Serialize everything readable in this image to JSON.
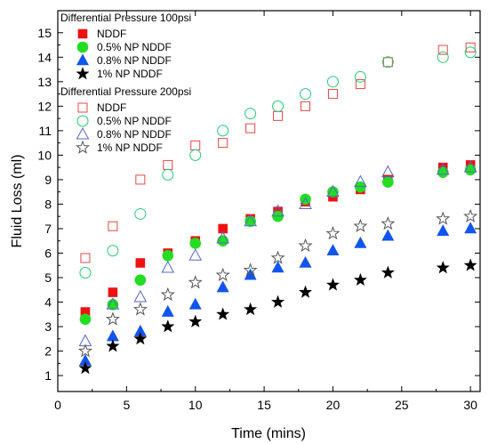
{
  "chart_data": {
    "type": "scatter",
    "xlabel": "Time (mins)",
    "ylabel": "Fluid Loss (ml)",
    "xlim": [
      0,
      30.7
    ],
    "ylim": [
      0.35,
      15.9
    ],
    "xticks": [
      "0",
      "5",
      "10",
      "15",
      "20",
      "25",
      "30"
    ],
    "yticks": [
      "1",
      "2",
      "3",
      "4",
      "5",
      "6",
      "7",
      "8",
      "9",
      "10",
      "11",
      "12",
      "13",
      "14",
      "15"
    ],
    "grid": false,
    "legend_placement": "top-left",
    "legend_groups": [
      {
        "title": "Differential Pressure 100psi",
        "entries": [
          "NDDF",
          "0.5% NP NDDF",
          "0.8% NP NDDF",
          "1% NP NDDF"
        ]
      },
      {
        "title": "Differential Pressure 200psi",
        "entries": [
          "NDDF",
          "0.5% NP NDDF",
          "0.8% NP NDDF",
          "1% NP NDDF"
        ]
      }
    ],
    "series": [
      {
        "name": "NDDF",
        "group": "Differential Pressure 100psi",
        "marker": "square",
        "filled": true,
        "color": "#ee1111",
        "x": [
          2,
          4,
          6,
          8,
          10,
          12,
          14,
          16,
          18,
          20,
          22,
          24,
          28,
          30
        ],
        "y": [
          3.6,
          4.4,
          5.6,
          6.0,
          6.5,
          7.0,
          7.4,
          7.7,
          8.1,
          8.3,
          8.6,
          9.0,
          9.5,
          9.6
        ]
      },
      {
        "name": "0.5% NP NDDF",
        "group": "Differential Pressure 100psi",
        "marker": "circle",
        "filled": true,
        "color": "#22dd22",
        "x": [
          2,
          4,
          6,
          8,
          10,
          12,
          14,
          16,
          18,
          20,
          22,
          24,
          28,
          30
        ],
        "y": [
          3.3,
          3.9,
          4.9,
          5.9,
          6.4,
          6.5,
          7.3,
          7.5,
          8.2,
          8.5,
          8.7,
          8.9,
          9.3,
          9.4
        ]
      },
      {
        "name": "0.8% NP NDDF",
        "group": "Differential Pressure 100psi",
        "marker": "triangle",
        "filled": true,
        "color": "#1155ee",
        "x": [
          2,
          4,
          6,
          8,
          10,
          12,
          14,
          16,
          18,
          20,
          22,
          24,
          28,
          30
        ],
        "y": [
          1.6,
          2.6,
          2.8,
          3.6,
          3.9,
          4.6,
          5.1,
          5.4,
          5.6,
          6.1,
          6.4,
          6.7,
          6.9,
          7.0
        ]
      },
      {
        "name": "1% NP NDDF",
        "group": "Differential Pressure 100psi",
        "marker": "star",
        "filled": true,
        "color": "#000000",
        "x": [
          2,
          4,
          6,
          8,
          10,
          12,
          14,
          16,
          18,
          20,
          22,
          24,
          28,
          30
        ],
        "y": [
          1.3,
          2.2,
          2.5,
          3.0,
          3.2,
          3.5,
          3.7,
          4.0,
          4.4,
          4.7,
          4.9,
          5.2,
          5.4,
          5.5
        ]
      },
      {
        "name": "NDDF",
        "group": "Differential Pressure 200psi",
        "marker": "square",
        "filled": false,
        "color": "#ee4444",
        "x": [
          2,
          4,
          6,
          8,
          10,
          12,
          14,
          16,
          18,
          20,
          22,
          24,
          28,
          30
        ],
        "y": [
          5.8,
          7.1,
          9.0,
          9.6,
          10.4,
          10.5,
          11.1,
          11.6,
          12.0,
          12.5,
          12.9,
          13.8,
          14.3,
          14.4
        ]
      },
      {
        "name": "0.5% NP NDDF",
        "group": "Differential Pressure 200psi",
        "marker": "circle",
        "filled": false,
        "color": "#22cc77",
        "x": [
          2,
          4,
          6,
          8,
          10,
          12,
          14,
          16,
          18,
          20,
          22,
          24,
          28,
          30
        ],
        "y": [
          5.2,
          6.1,
          7.6,
          9.2,
          10.0,
          11.0,
          11.7,
          12.0,
          12.5,
          13.0,
          13.2,
          13.8,
          14.0,
          14.2
        ]
      },
      {
        "name": "0.8% NP NDDF",
        "group": "Differential Pressure 200psi",
        "marker": "triangle",
        "filled": false,
        "color": "#5566cc",
        "x": [
          2,
          4,
          6,
          8,
          10,
          12,
          14,
          16,
          18,
          20,
          22,
          24,
          28,
          30
        ],
        "y": [
          2.4,
          3.9,
          4.2,
          5.4,
          5.9,
          6.6,
          7.3,
          7.7,
          8.0,
          8.5,
          8.9,
          9.3,
          9.4,
          9.5
        ]
      },
      {
        "name": "1% NP NDDF",
        "group": "Differential Pressure 200psi",
        "marker": "star",
        "filled": false,
        "color": "#555555",
        "x": [
          2,
          4,
          6,
          8,
          10,
          12,
          14,
          16,
          18,
          20,
          22,
          24,
          28,
          30
        ],
        "y": [
          2.0,
          3.3,
          3.7,
          4.3,
          4.8,
          5.1,
          5.3,
          5.8,
          6.3,
          6.8,
          7.1,
          7.2,
          7.4,
          7.5
        ]
      }
    ]
  }
}
